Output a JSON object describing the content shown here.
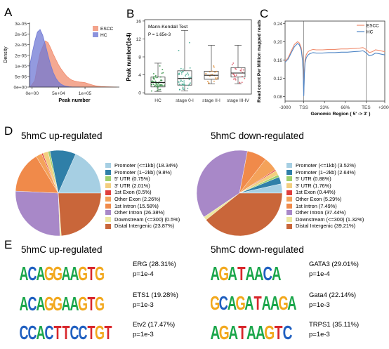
{
  "panels": {
    "a": {
      "letter": "A"
    },
    "b": {
      "letter": "B"
    },
    "c": {
      "letter": "C"
    },
    "d": {
      "letter": "D"
    },
    "e": {
      "letter": "E"
    }
  },
  "colors": {
    "escc": "#f08c6e",
    "hc": "#6f78d4",
    "overlap": "#a98cb7"
  },
  "chart_data": [
    {
      "id": "A",
      "type": "area",
      "xlabel": "Peak number",
      "ylabel": "Density",
      "xlim": [
        -5000,
        165000
      ],
      "ylim": [
        0,
        3.05e-05
      ],
      "xticks": [
        0,
        50000,
        100000
      ],
      "xtick_labels": [
        "0e+00",
        "5e+04",
        "1e+05"
      ],
      "yticks": [
        0,
        5e-06,
        1e-05,
        1.5e-05,
        2e-05,
        2.5e-05,
        3e-05
      ],
      "ytick_labels": [
        "0e+00",
        "5e-06",
        "1e-05",
        "2e-05",
        "2e-05",
        "2e-05",
        "3e-05"
      ],
      "legend_position": "top-right",
      "series": [
        {
          "name": "ESCC",
          "color": "#f08c6e",
          "x": [
            -4000,
            5000,
            10000,
            15000,
            20000,
            25000,
            30000,
            35000,
            40000,
            45000,
            50000,
            55000,
            60000,
            65000,
            70000,
            75000,
            80000,
            85000,
            90000,
            95000,
            100000,
            105000,
            110000,
            115000,
            120000,
            130000,
            140000,
            150000,
            160000
          ],
          "y": [
            0,
            3e-06,
            1e-05,
            1.6e-05,
            1.9e-05,
            2.18e-05,
            2.1e-05,
            1.85e-05,
            1.55e-05,
            1.3e-05,
            1.05e-05,
            8.5e-06,
            6.8e-06,
            5.2e-06,
            4.1e-06,
            3.3e-06,
            2.9e-06,
            2.6e-06,
            2.4e-06,
            2.3e-06,
            2.1e-06,
            1.7e-06,
            1.3e-06,
            9e-07,
            6e-07,
            3e-07,
            1.5e-07,
            5e-08,
            0
          ]
        },
        {
          "name": "HC",
          "color": "#6f78d4",
          "x": [
            -4000,
            0,
            5000,
            10000,
            15000,
            20000,
            25000,
            30000,
            35000,
            40000,
            45000,
            50000,
            55000,
            60000,
            65000,
            70000,
            75000,
            80000,
            85000,
            90000
          ],
          "y": [
            1.1e-05,
            1.6e-05,
            2.15e-05,
            2.6e-05,
            2.72e-05,
            2.45e-05,
            2e-05,
            1.5e-05,
            1.05e-05,
            6.8e-06,
            4.2e-06,
            2.4e-06,
            1.3e-06,
            7e-07,
            3.5e-07,
            1.6e-07,
            7e-08,
            3e-08,
            1e-08,
            0
          ]
        }
      ]
    },
    {
      "id": "B",
      "type": "box",
      "ylabel": "Peak number(1e4)",
      "annotation_title": "Mann-Kendall Test",
      "annotation_p": "P = 1.65e-3",
      "ylim": [
        -0.3,
        16.3
      ],
      "yticks": [
        0,
        4,
        8,
        12,
        16
      ],
      "categories": [
        "HC",
        "stage 0-I",
        "stage II-I",
        "stage III-IV"
      ],
      "point_colors": [
        "#2e8b3e",
        "#3aa68c",
        "#e08a2e",
        "#d84a5a"
      ],
      "boxes": [
        {
          "min": 0.3,
          "q1": 1.3,
          "median": 2.3,
          "q3": 3.5,
          "max": 6.6
        },
        {
          "min": 0.4,
          "q1": 1.7,
          "median": 3.2,
          "q3": 4.9,
          "max": 13.9
        },
        {
          "min": 2.0,
          "q1": 3.0,
          "median": 3.9,
          "q3": 4.8,
          "max": 10.6
        },
        {
          "min": 2.0,
          "q1": 3.5,
          "median": 4.4,
          "q3": 5.6,
          "max": 10.6
        }
      ]
    },
    {
      "id": "C",
      "type": "line",
      "xlabel": "Genomic Region ( 5' -> 3' )",
      "ylabel": "Read count Per Million mapped reads",
      "ylim": [
        0.07,
        0.245
      ],
      "yticks": [
        0.08,
        0.12,
        0.16,
        0.2,
        0.24
      ],
      "ytick_labels": [
        "0.08",
        "0.12",
        "0.16",
        "0.20",
        "0.24"
      ],
      "x_categories": [
        "-3000",
        "TSS",
        "33%",
        "66%",
        "TES",
        "+3000"
      ],
      "legend_position": "top-right",
      "series": [
        {
          "name": "ESCC",
          "color": "#f08c6e",
          "x": [
            -3000,
            -2500,
            -2000,
            -1500,
            -1000,
            -700,
            -400,
            -200,
            -100,
            0,
            100,
            200,
            400,
            700,
            1000,
            1500,
            2000,
            3000,
            4000,
            5000,
            6000,
            7000,
            8000,
            9000,
            9500,
            10000,
            10500,
            11000,
            11500,
            12000,
            13000
          ],
          "y": [
            0.157,
            0.165,
            0.18,
            0.194,
            0.2,
            0.197,
            0.186,
            0.165,
            0.14,
            0.083,
            0.135,
            0.16,
            0.172,
            0.178,
            0.181,
            0.183,
            0.182,
            0.182,
            0.183,
            0.183,
            0.184,
            0.184,
            0.185,
            0.186,
            0.187,
            0.183,
            0.176,
            0.178,
            0.182,
            0.181,
            0.178
          ]
        },
        {
          "name": "HC",
          "color": "#4f86c6",
          "x": [
            -3000,
            -2500,
            -2000,
            -1500,
            -1000,
            -700,
            -400,
            -200,
            -100,
            0,
            100,
            200,
            400,
            700,
            1000,
            1500,
            2000,
            3000,
            4000,
            5000,
            6000,
            7000,
            8000,
            9000,
            9500,
            10000,
            10500,
            11000,
            11500,
            12000,
            13000
          ],
          "y": [
            0.155,
            0.162,
            0.176,
            0.189,
            0.196,
            0.193,
            0.181,
            0.159,
            0.134,
            0.081,
            0.128,
            0.153,
            0.165,
            0.171,
            0.174,
            0.176,
            0.175,
            0.175,
            0.176,
            0.176,
            0.177,
            0.177,
            0.178,
            0.179,
            0.18,
            0.176,
            0.169,
            0.171,
            0.175,
            0.174,
            0.171
          ]
        }
      ]
    },
    {
      "id": "D-up",
      "type": "pie",
      "title": "5hmC up-regulated",
      "legend_position": "right",
      "labels": [
        "Promoter (<=1kb) (18.34%)",
        "Promoter (1~2kb) (9.8%)",
        "5' UTR (0.75%)",
        "3' UTR (2.01%)",
        "1st Exon (0.5%)",
        "Other Exon (2.26%)",
        "1st Intron (15.58%)",
        "Other Intron (26.38%)",
        "Downstream (<=300) (0.5%)",
        "Distal Intergenic (23.87%)"
      ],
      "values": [
        18.34,
        9.8,
        0.75,
        2.01,
        0.5,
        2.26,
        15.58,
        26.38,
        0.5,
        23.87
      ],
      "colors": [
        "#a6cfe3",
        "#2f7fa8",
        "#9fcf6c",
        "#f3ce7f",
        "#e03e3c",
        "#f4a25a",
        "#f08a4a",
        "#a888c8",
        "#ede8a0",
        "#c9663a"
      ]
    },
    {
      "id": "D-down",
      "type": "pie",
      "title": "5hmC down-regulated",
      "legend_position": "right",
      "labels": [
        "Promoter (<=1kb) (3.52%)",
        "Promoter (1~2kb) (2.64%)",
        "5' UTR (0.88%)",
        "3' UTR (1.76%)",
        "1st Exon (0.44%)",
        "Other Exon (5.29%)",
        "1st Intron (7.49%)",
        "Other Intron (37.44%)",
        "Downstream (<=300) (1.32%)",
        "Distal Intergenic (39.21%)"
      ],
      "values": [
        3.52,
        2.64,
        0.88,
        1.76,
        0.44,
        5.29,
        7.49,
        37.44,
        1.32,
        39.21
      ],
      "colors": [
        "#a6cfe3",
        "#2f7fa8",
        "#9fcf6c",
        "#f3ce7f",
        "#e03e3c",
        "#f4a25a",
        "#f08a4a",
        "#a888c8",
        "#ede8a0",
        "#c9663a"
      ]
    }
  ],
  "motifs": {
    "up_title": "5hmC up-regulated",
    "down_title": "5hmC down-regulated",
    "base_colors": {
      "A": "#1aa64a",
      "C": "#1f5fc0",
      "G": "#f2a81d",
      "T": "#d8262b"
    },
    "up": [
      {
        "tf": "ERG (28.31%)",
        "p": "p=1e-4",
        "letters": [
          "A",
          "C",
          "A",
          "G",
          "G",
          "A",
          "A",
          "G",
          "T",
          "G"
        ]
      },
      {
        "tf": "ETS1 (19.28%)",
        "p": "p=1e-3",
        "letters": [
          "A",
          "C",
          "A",
          "G",
          "G",
          "A",
          "A",
          "G",
          "T",
          "G"
        ]
      },
      {
        "tf": "Etv2 (17.47%)",
        "p": "p=1e-3",
        "letters": [
          "C",
          "C",
          "A",
          "C",
          "T",
          "T",
          "C",
          "C",
          "T",
          "G",
          "T"
        ]
      }
    ],
    "down": [
      {
        "tf": "GATA3 (29.01%)",
        "p": "p=1e-4",
        "letters": [
          "A",
          "G",
          "A",
          "T",
          "A",
          "A",
          "C",
          "A"
        ]
      },
      {
        "tf": "Gata4 (22.14%)",
        "p": "p=1e-3",
        "letters": [
          "G",
          "C",
          "A",
          "G",
          "A",
          "T",
          "A",
          "A",
          "G",
          "A"
        ]
      },
      {
        "tf": "TRPS1 (35.11%)",
        "p": "p=1e-3",
        "letters": [
          "A",
          "G",
          "A",
          "T",
          "A",
          "A",
          "G",
          "T",
          "C"
        ]
      }
    ]
  }
}
